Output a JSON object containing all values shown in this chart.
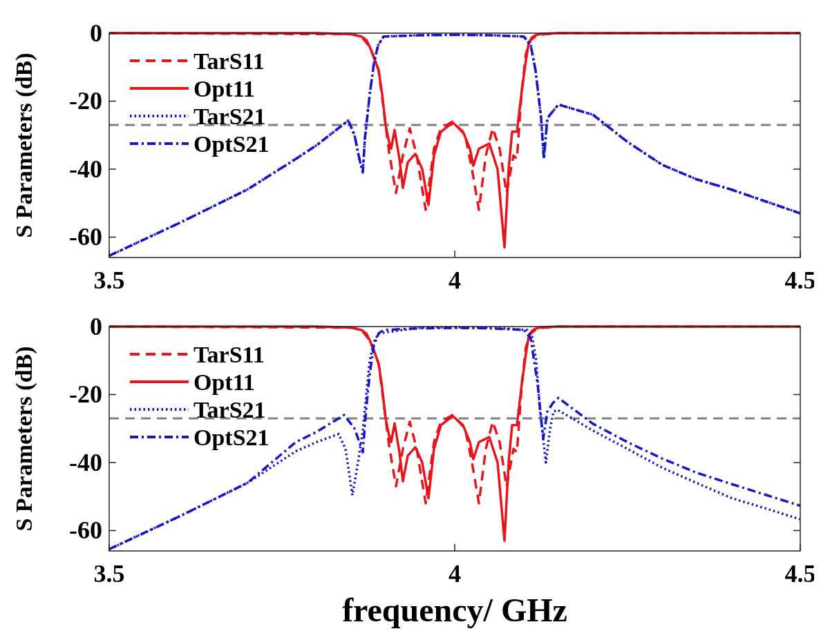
{
  "chart_data": [
    {
      "type": "line",
      "ylabel": "S Parameters (dB)",
      "xlim": [
        3.5,
        4.5
      ],
      "xticks": [
        3.5,
        4,
        4.5
      ],
      "ylim": [
        -66,
        0
      ],
      "yticks": [
        0,
        -20,
        -40,
        -60
      ],
      "legend": "top left",
      "ref_lines": [
        {
          "axis": "y",
          "value": -27,
          "color": "#808080",
          "line_style": "dashed"
        }
      ],
      "series": [
        {
          "name": "TarS11",
          "color": "#e8141c",
          "line_style": "dashed",
          "x": [
            3.5,
            3.85,
            3.865,
            3.877,
            3.89,
            3.9,
            3.905,
            3.915,
            3.925,
            3.935,
            3.945,
            3.958,
            3.97,
            3.98,
            3.997,
            4.015,
            4.025,
            4.035,
            4.045,
            4.055,
            4.065,
            4.075,
            4.085,
            4.09,
            4.097,
            4.103,
            4.11,
            4.12,
            4.15,
            4.5
          ],
          "values": [
            0,
            -0.3,
            -1,
            -4,
            -11,
            -27,
            -35,
            -47,
            -36,
            -28,
            -36,
            -52,
            -34,
            -28,
            -26,
            -30,
            -40,
            -52,
            -36,
            -28,
            -34,
            -47,
            -36,
            -37,
            -17,
            -6,
            -2,
            -0.5,
            0,
            0
          ]
        },
        {
          "name": "Opt11",
          "color": "#e8141c",
          "line_style": "solid",
          "x": [
            3.5,
            3.8,
            3.85,
            3.865,
            3.872,
            3.877,
            3.883,
            3.89,
            3.895,
            3.9,
            3.905,
            3.908,
            3.913,
            3.92,
            3.925,
            3.932,
            3.943,
            3.953,
            3.962,
            3.97,
            3.98,
            3.997,
            4.012,
            4.022,
            4.027,
            4.035,
            4.05,
            4.062,
            4.072,
            4.078,
            4.083,
            4.09,
            4.097,
            4.103,
            4.107,
            4.112,
            4.117,
            4.125,
            4.15,
            4.5
          ],
          "values": [
            0,
            0,
            -0.3,
            -1,
            -2,
            -4,
            -7,
            -11,
            -18,
            -27,
            -32,
            -34,
            -28.5,
            -37,
            -45.5,
            -38,
            -35.5,
            -40,
            -50.5,
            -36,
            -29,
            -26.3,
            -29,
            -34,
            -39,
            -34,
            -32.5,
            -40,
            -63,
            -40,
            -29,
            -29,
            -17,
            -8,
            -3,
            -1.2,
            -0.6,
            -0.2,
            0,
            0
          ]
        },
        {
          "name": "TarS21",
          "color": "#1515c8",
          "line_style": "dotted",
          "x": [
            3.5,
            3.6,
            3.7,
            3.77,
            3.8,
            3.846,
            3.855,
            3.862,
            3.867,
            3.87,
            3.877,
            3.883,
            3.889,
            3.897,
            3.95,
            4.0,
            4.05,
            4.1,
            4.11,
            4.117,
            4.125,
            4.129,
            4.134,
            4.142,
            4.15,
            4.2,
            4.25,
            4.3,
            4.35,
            4.4,
            4.45,
            4.5
          ],
          "values": [
            -65.5,
            -56,
            -46,
            -37,
            -33,
            -25.7,
            -30,
            -37,
            -41,
            -31,
            -18,
            -9,
            -3.6,
            -1,
            -0.6,
            -0.5,
            -0.6,
            -1,
            -3.6,
            -11,
            -25,
            -37,
            -25,
            -23,
            -21,
            -24,
            -32,
            -38.7,
            -43,
            -46,
            -49.5,
            -53
          ]
        },
        {
          "name": "OptS21",
          "color": "#1515c8",
          "line_style": "dashdot",
          "x": [
            3.5,
            3.6,
            3.7,
            3.77,
            3.8,
            3.846,
            3.855,
            3.862,
            3.867,
            3.87,
            3.877,
            3.883,
            3.889,
            3.897,
            3.95,
            4.0,
            4.05,
            4.1,
            4.11,
            4.117,
            4.125,
            4.129,
            4.134,
            4.142,
            4.15,
            4.2,
            4.25,
            4.3,
            4.35,
            4.4,
            4.45,
            4.5
          ],
          "values": [
            -65.5,
            -56,
            -46,
            -37,
            -33,
            -25.7,
            -30,
            -37,
            -41,
            -31,
            -18,
            -9,
            -3.6,
            -1,
            -0.6,
            -0.5,
            -0.6,
            -1,
            -3.6,
            -11,
            -25,
            -37,
            -25,
            -23,
            -21,
            -24,
            -32,
            -38.7,
            -43,
            -46,
            -49.5,
            -53
          ]
        }
      ]
    },
    {
      "type": "line",
      "xlabel": "frequency/ GHz",
      "ylabel": "S Parameters (dB)",
      "xlim": [
        3.5,
        4.5
      ],
      "xticks": [
        3.5,
        4,
        4.5
      ],
      "ylim": [
        -66,
        0
      ],
      "yticks": [
        0,
        -20,
        -40,
        -60
      ],
      "legend": "top left",
      "ref_lines": [
        {
          "axis": "y",
          "value": -27,
          "color": "#808080",
          "line_style": "dashed"
        }
      ],
      "series": [
        {
          "name": "TarS11",
          "color": "#e8141c",
          "line_style": "dashed",
          "x": [
            3.5,
            3.85,
            3.865,
            3.877,
            3.89,
            3.9,
            3.905,
            3.915,
            3.925,
            3.935,
            3.945,
            3.958,
            3.97,
            3.98,
            3.997,
            4.015,
            4.025,
            4.035,
            4.045,
            4.055,
            4.065,
            4.075,
            4.085,
            4.09,
            4.097,
            4.103,
            4.11,
            4.12,
            4.15,
            4.5
          ],
          "values": [
            0,
            -0.3,
            -1,
            -4,
            -11,
            -27,
            -35,
            -47,
            -36,
            -28,
            -36,
            -52,
            -34,
            -28,
            -26,
            -30,
            -40,
            -52,
            -36,
            -28,
            -34,
            -47,
            -36,
            -37,
            -17,
            -6,
            -2,
            -0.5,
            0,
            0
          ]
        },
        {
          "name": "Opt11",
          "color": "#e8141c",
          "line_style": "solid",
          "x": [
            3.5,
            3.8,
            3.85,
            3.865,
            3.872,
            3.877,
            3.883,
            3.89,
            3.895,
            3.9,
            3.905,
            3.908,
            3.913,
            3.92,
            3.925,
            3.932,
            3.943,
            3.953,
            3.962,
            3.97,
            3.98,
            3.997,
            4.012,
            4.022,
            4.027,
            4.035,
            4.05,
            4.062,
            4.072,
            4.078,
            4.083,
            4.09,
            4.097,
            4.103,
            4.107,
            4.112,
            4.117,
            4.125,
            4.15,
            4.5
          ],
          "values": [
            0,
            0,
            -0.3,
            -1,
            -2,
            -4,
            -7,
            -11,
            -18,
            -27,
            -32,
            -34,
            -28.5,
            -37,
            -45.5,
            -38,
            -35.5,
            -40,
            -50.5,
            -36,
            -29,
            -26.3,
            -29,
            -34,
            -39,
            -34,
            -32.5,
            -40,
            -63,
            -40,
            -29,
            -29,
            -17,
            -8,
            -3,
            -1.2,
            -0.6,
            -0.2,
            0,
            0
          ]
        },
        {
          "name": "TarS21",
          "color": "#1515c8",
          "line_style": "dotted",
          "x": [
            3.5,
            3.6,
            3.7,
            3.77,
            3.8,
            3.832,
            3.842,
            3.852,
            3.86,
            3.867,
            3.872,
            3.877,
            3.883,
            3.89,
            3.95,
            4,
            4.05,
            4.105,
            4.112,
            4.118,
            4.123,
            4.128,
            4.132,
            4.138,
            4.143,
            4.149,
            4.2,
            4.25,
            4.3,
            4.35,
            4.4,
            4.45,
            4.5
          ],
          "values": [
            -65.5,
            -56,
            -46,
            -36.7,
            -34,
            -31.6,
            -36,
            -49.6,
            -40,
            -30.6,
            -20,
            -10,
            -4.5,
            -2,
            -0.3,
            -0.2,
            -0.3,
            -1,
            -3,
            -10,
            -24,
            -33,
            -40,
            -30,
            -25,
            -24.5,
            -30.6,
            -36,
            -41.5,
            -46,
            -50.4,
            -53.5,
            -56.7
          ]
        },
        {
          "name": "OptS21",
          "color": "#1515c8",
          "line_style": "dashdot",
          "x": [
            3.5,
            3.6,
            3.7,
            3.77,
            3.8,
            3.84,
            3.855,
            3.862,
            3.867,
            3.872,
            3.877,
            3.883,
            3.89,
            3.897,
            3.95,
            4,
            4.05,
            4.1,
            4.11,
            4.12,
            4.128,
            4.134,
            4.142,
            4.15,
            4.2,
            4.25,
            4.3,
            4.35,
            4.4,
            4.45,
            4.5
          ],
          "values": [
            -65.5,
            -56,
            -46,
            -34,
            -31,
            -26,
            -30,
            -34,
            -37,
            -24,
            -14,
            -5.5,
            -2,
            -1,
            -0.5,
            -0.4,
            -0.5,
            -1,
            -3.5,
            -17,
            -33,
            -25,
            -22.5,
            -21,
            -28.6,
            -34,
            -38.8,
            -43,
            -46.3,
            -49.5,
            -52.7
          ]
        }
      ]
    }
  ]
}
